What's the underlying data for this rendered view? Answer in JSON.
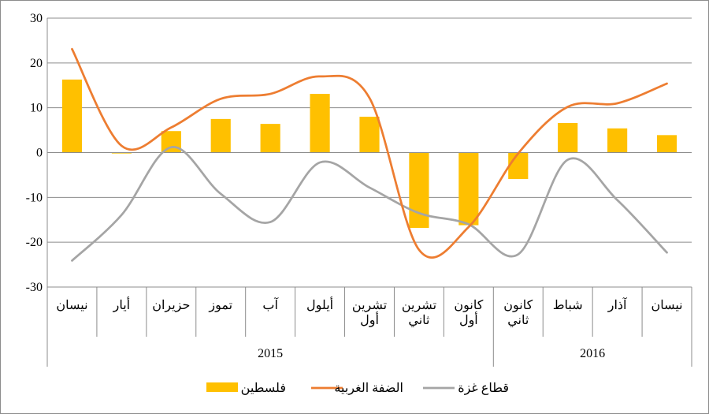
{
  "chart_data": {
    "type": "bar",
    "categories": [
      [
        "نيسان"
      ],
      [
        "أيار"
      ],
      [
        "حزيران"
      ],
      [
        "تموز"
      ],
      [
        "آب"
      ],
      [
        "أيلول"
      ],
      [
        "تشرين",
        "أول"
      ],
      [
        "تشرين",
        "ثاني"
      ],
      [
        "كانون",
        "أول"
      ],
      [
        "كانون",
        "ثاني"
      ],
      [
        "شباط"
      ],
      [
        "آذار"
      ],
      [
        "نيسان"
      ]
    ],
    "year_groups": [
      {
        "label": "2015",
        "start": 0,
        "end": 8
      },
      {
        "label": "2016",
        "start": 9,
        "end": 12
      }
    ],
    "series": [
      {
        "name": "فلسطين",
        "type": "bar",
        "color": "#FFC000",
        "values": [
          16.3,
          -0.2,
          4.8,
          7.5,
          6.4,
          13.1,
          8.0,
          -16.8,
          -16.2,
          -5.9,
          6.6,
          5.4,
          3.9
        ]
      },
      {
        "name": "الضفة الغربية",
        "type": "line",
        "color": "#ED7D31",
        "values": [
          23.1,
          1.5,
          5.6,
          12.0,
          13.1,
          17.0,
          12.2,
          -21.7,
          -16.6,
          -0.2,
          10.2,
          11.0,
          15.4
        ]
      },
      {
        "name": "قطاع غزة",
        "type": "line",
        "color": "#A5A5A5",
        "values": [
          -24.1,
          -13.9,
          1.2,
          -9.2,
          -15.5,
          -2.2,
          -7.8,
          -13.5,
          -16.0,
          -22.7,
          -1.6,
          -10.6,
          -22.3
        ]
      }
    ],
    "yticks": [
      30,
      20,
      10,
      0,
      -10,
      -20,
      -30
    ],
    "ylim": [
      -30,
      30
    ],
    "grid": true,
    "legend_position": "bottom"
  }
}
